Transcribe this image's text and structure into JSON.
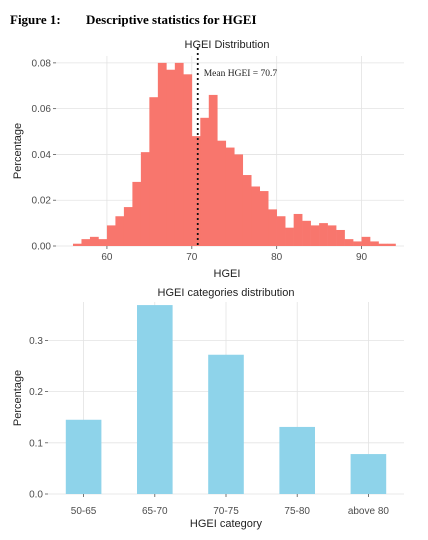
{
  "figure": {
    "number": "Figure 1:",
    "title": "Descriptive statistics for HGEI"
  },
  "chart_data": [
    {
      "type": "bar",
      "title": "HGEI Distribution",
      "xlabel": "HGEI",
      "ylabel": "Percentage",
      "xlim": [
        54,
        95
      ],
      "ylim": [
        0,
        0.083
      ],
      "x_ticks": [
        60,
        70,
        80,
        90
      ],
      "y_ticks": [
        0,
        0.02,
        0.04,
        0.06,
        0.08
      ],
      "y_tick_labels": [
        "0.00",
        "0.02",
        "0.04",
        "0.06",
        "0.08"
      ],
      "bin_width": 1,
      "bins_start": [
        56,
        57,
        58,
        59,
        60,
        61,
        62,
        63,
        64,
        65,
        66,
        67,
        68,
        69,
        70,
        71,
        72,
        73,
        74,
        75,
        76,
        77,
        78,
        79,
        80,
        81,
        82,
        83,
        84,
        85,
        86,
        87,
        88,
        89,
        90,
        91,
        92,
        93
      ],
      "values": [
        0.001,
        0.003,
        0.004,
        0.003,
        0.009,
        0.013,
        0.017,
        0.028,
        0.041,
        0.065,
        0.08,
        0.077,
        0.08,
        0.075,
        0.048,
        0.056,
        0.066,
        0.046,
        0.043,
        0.04,
        0.031,
        0.026,
        0.024,
        0.016,
        0.013,
        0.008,
        0.014,
        0.011,
        0.009,
        0.01,
        0.009,
        0.007,
        0.003,
        0.002,
        0.004,
        0.002,
        0.001,
        0.001
      ],
      "color": "#f8766d",
      "mean_line": {
        "value": 70.7,
        "label": "Mean HGEI = 70.7"
      },
      "grid": true
    },
    {
      "type": "bar",
      "title": "HGEI categories distribution",
      "xlabel": "HGEI category",
      "ylabel": "Percentage",
      "ylim": [
        0,
        0.375
      ],
      "y_ticks": [
        0,
        0.1,
        0.2,
        0.3
      ],
      "y_tick_labels": [
        "0.0",
        "0.1",
        "0.2",
        "0.3"
      ],
      "categories": [
        "50-65",
        "65-70",
        "70-75",
        "75-80",
        "above 80"
      ],
      "values": [
        0.145,
        0.369,
        0.272,
        0.131,
        0.078
      ],
      "color": "#8ed3ea",
      "grid": true
    }
  ]
}
